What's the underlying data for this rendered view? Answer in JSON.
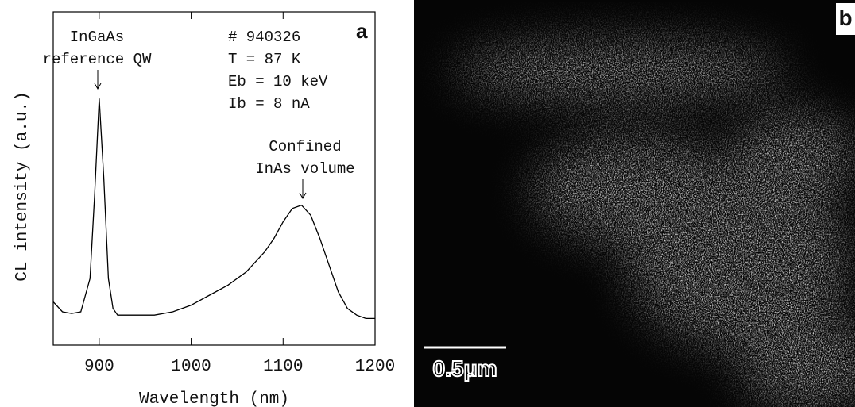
{
  "chart_data": {
    "type": "line",
    "panel_label": "a",
    "x_label": "Wavelength (nm)",
    "y_label": "CL intensity (a.u.)",
    "xlim": [
      850,
      1200
    ],
    "xticks": [
      900,
      1000,
      1100,
      1200
    ],
    "ylim": [
      0,
      100
    ],
    "annotations": [
      "InGaAs",
      "reference QW",
      "# 940326",
      "T = 87 K",
      "Eb = 10 keV",
      "Ib = 8 nA",
      "Confined",
      "InAs volume"
    ],
    "series": [
      {
        "color": "#000000",
        "x": [
          850,
          860,
          870,
          880,
          890,
          895,
          900,
          905,
          910,
          915,
          920,
          940,
          960,
          980,
          1000,
          1020,
          1040,
          1060,
          1080,
          1090,
          1100,
          1110,
          1120,
          1130,
          1140,
          1150,
          1160,
          1170,
          1180,
          1190,
          1200
        ],
        "values": [
          13,
          10,
          9.5,
          10,
          20,
          45,
          74,
          50,
          20,
          11,
          9,
          9,
          9,
          10,
          12,
          15,
          18,
          22,
          28,
          32,
          37,
          41,
          42,
          39,
          32,
          24,
          16,
          11,
          9,
          8,
          8
        ]
      }
    ]
  },
  "panel_b": {
    "label": "b",
    "scale_bar": "0.5μm"
  }
}
